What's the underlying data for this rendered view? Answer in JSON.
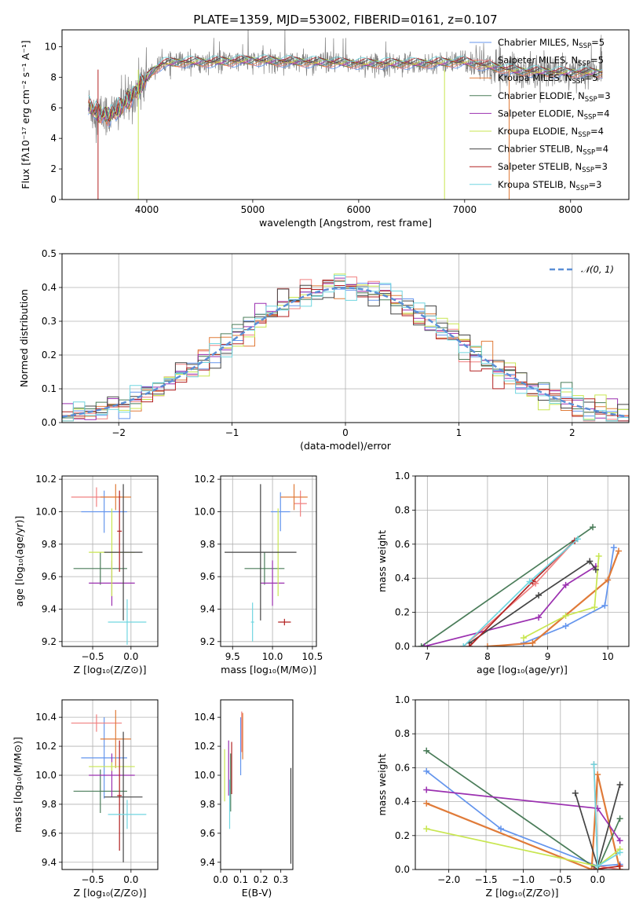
{
  "colors": {
    "chabrier_miles": "#6495ed",
    "salpeter_miles": "#f08080",
    "kroupa_miles": "#e07b39",
    "chabrier_elodie": "#4a7c59",
    "salpeter_elodie": "#9b30b0",
    "kroupa_elodie": "#c8e650",
    "chabrier_stelib": "#444444",
    "salpeter_stelib": "#b22222",
    "kroupa_stelib": "#70d6e0",
    "normal": "#5b8fd6",
    "spectrum": "#808080"
  },
  "chart_data": [
    {
      "id": "spectrum",
      "type": "line",
      "title": "PLATE=1359, MJD=53002, FIBERID=0161, z=0.107",
      "xlabel": "wavelength [Angstrom, rest frame]",
      "ylabel": "Flux [fλ10⁻¹⁷ erg cm⁻² s⁻¹ A⁻¹]",
      "xlim": [
        3200,
        8550
      ],
      "ylim": [
        0,
        11.1
      ],
      "xticks": [
        4000,
        5000,
        6000,
        7000,
        8000
      ],
      "yticks": [
        0,
        2,
        4,
        6,
        8,
        10
      ],
      "spectrum_anchors": {
        "x": [
          3450,
          3550,
          3650,
          3750,
          3850,
          3950,
          4050,
          4150,
          4350,
          4600,
          5000,
          5500,
          6000,
          6500,
          7000,
          7500,
          8000,
          8300
        ],
        "y": [
          6.1,
          5.6,
          5.5,
          6.0,
          6.7,
          7.5,
          8.4,
          8.9,
          9.0,
          9.0,
          9.1,
          9.0,
          8.9,
          8.9,
          9.0,
          8.4,
          8.3,
          8.3
        ]
      },
      "legend": [
        {
          "label": "Chabrier MILES, N",
          "sub": "SSP",
          "tail": "=5",
          "color_key": "chabrier_miles"
        },
        {
          "label": "Salpeter MILES, N",
          "sub": "SSP",
          "tail": "=5",
          "color_key": "salpeter_miles"
        },
        {
          "label": "Kroupa MILES, N",
          "sub": "SSP",
          "tail": "=5",
          "color_key": "kroupa_miles"
        },
        {
          "label": "Chabrier ELODIE, N",
          "sub": "SSP",
          "tail": "=3",
          "color_key": "chabrier_elodie"
        },
        {
          "label": "Salpeter ELODIE, N",
          "sub": "SSP",
          "tail": "=4",
          "color_key": "salpeter_elodie"
        },
        {
          "label": "Kroupa ELODIE, N",
          "sub": "SSP",
          "tail": "=4",
          "color_key": "kroupa_elodie"
        },
        {
          "label": "Chabrier STELIB, N",
          "sub": "SSP",
          "tail": "=4",
          "color_key": "chabrier_stelib"
        },
        {
          "label": "Salpeter STELIB, N",
          "sub": "SSP",
          "tail": "=3",
          "color_key": "salpeter_stelib"
        },
        {
          "label": "Kroupa STELIB, N",
          "sub": "SSP",
          "tail": "=3",
          "color_key": "kroupa_stelib"
        }
      ],
      "legend_placement": "upper-right"
    },
    {
      "id": "residuals",
      "type": "histogram",
      "xlabel": "(data-model)/error",
      "ylabel": "Normed distribution",
      "xlim": [
        -2.5,
        2.5
      ],
      "ylim": [
        0,
        0.5
      ],
      "xticks": [
        -2,
        -1,
        0,
        1,
        2
      ],
      "yticks": [
        0.0,
        0.1,
        0.2,
        0.3,
        0.4,
        0.5
      ],
      "grid": true,
      "legend": [
        {
          "label": "𝒩(0, 1)",
          "color_key": "normal",
          "style": "dashed"
        }
      ],
      "legend_placement": "upper-right"
    },
    {
      "id": "age_vs_z",
      "type": "errorbar",
      "xlabel": "Z [log₁₀(Z/Z⊙)]",
      "ylabel": "age [log₁₀(age/yr)]",
      "xlim": [
        -0.9,
        0.35
      ],
      "ylim": [
        9.17,
        10.22
      ],
      "xticks": [
        -0.5,
        0.0
      ],
      "yticks": [
        9.2,
        9.4,
        9.6,
        9.8,
        10.0,
        10.2
      ],
      "grid": true,
      "points": [
        {
          "color_key": "chabrier_miles",
          "x": -0.35,
          "xerr": 0.3,
          "y": 10.0,
          "yerr": 0.13
        },
        {
          "color_key": "salpeter_miles",
          "x": -0.45,
          "xerr": 0.33,
          "y": 10.09,
          "yerr": 0.06
        },
        {
          "color_key": "kroupa_miles",
          "x": -0.2,
          "xerr": 0.2,
          "y": 10.09,
          "yerr": 0.08
        },
        {
          "color_key": "chabrier_elodie",
          "x": -0.4,
          "xerr": 0.35,
          "y": 9.65,
          "yerr": 0.1
        },
        {
          "color_key": "salpeter_elodie",
          "x": -0.25,
          "xerr": 0.3,
          "y": 9.56,
          "yerr": 0.14
        },
        {
          "color_key": "kroupa_elodie",
          "x": -0.25,
          "xerr": 0.3,
          "y": 9.75,
          "yerr": 0.27
        },
        {
          "color_key": "chabrier_stelib",
          "x": -0.1,
          "xerr": 0.25,
          "y": 9.75,
          "yerr": 0.42
        },
        {
          "color_key": "salpeter_stelib",
          "x": -0.15,
          "xerr": 0.03,
          "y": 9.88,
          "yerr": 0.25
        },
        {
          "color_key": "kroupa_stelib",
          "x": -0.05,
          "xerr": 0.25,
          "y": 9.32,
          "yerr": 0.14
        }
      ]
    },
    {
      "id": "age_vs_mass",
      "type": "errorbar",
      "xlabel": "mass [log₁₀(M/M⊙)]",
      "ylabel": "",
      "xlim": [
        9.35,
        10.55
      ],
      "ylim": [
        9.17,
        10.22
      ],
      "xticks": [
        9.5,
        10.0,
        10.5
      ],
      "yticks": [
        9.2,
        9.4,
        9.6,
        9.8,
        10.0,
        10.2
      ],
      "grid": true,
      "points": [
        {
          "color_key": "chabrier_miles",
          "x": 10.1,
          "xerr": 0.12,
          "y": 10.0,
          "yerr": 0.12
        },
        {
          "color_key": "salpeter_miles",
          "x": 10.35,
          "xerr": 0.08,
          "y": 10.05,
          "yerr": 0.08
        },
        {
          "color_key": "kroupa_miles",
          "x": 10.27,
          "xerr": 0.17,
          "y": 10.09,
          "yerr": 0.08
        },
        {
          "color_key": "chabrier_elodie",
          "x": 9.9,
          "xerr": 0.25,
          "y": 9.65,
          "yerr": 0.1
        },
        {
          "color_key": "salpeter_elodie",
          "x": 10.0,
          "xerr": 0.15,
          "y": 9.56,
          "yerr": 0.14
        },
        {
          "color_key": "kroupa_elodie",
          "x": 10.07,
          "xerr": 0.02,
          "y": 9.75,
          "yerr": 0.27
        },
        {
          "color_key": "chabrier_stelib",
          "x": 9.85,
          "xerr": 0.45,
          "y": 9.75,
          "yerr": 0.42
        },
        {
          "color_key": "salpeter_stelib",
          "x": 10.15,
          "xerr": 0.08,
          "y": 9.32,
          "yerr": 0.02
        },
        {
          "color_key": "kroupa_stelib",
          "x": 9.75,
          "xerr": 0.02,
          "y": 9.32,
          "yerr": 0.12
        }
      ]
    },
    {
      "id": "mass_weight_vs_age",
      "type": "line",
      "xlabel": "age [log₁₀(age/yr)]",
      "ylabel": "mass weight",
      "xlim": [
        6.8,
        10.35
      ],
      "ylim": [
        0,
        1.0
      ],
      "xticks": [
        7,
        8,
        9,
        10
      ],
      "yticks": [
        0.0,
        0.2,
        0.4,
        0.6,
        0.8,
        1.0
      ],
      "grid": true,
      "series": [
        {
          "color_key": "chabrier_miles",
          "x": [
            8.6,
            9.3,
            9.95,
            10.1
          ],
          "y": [
            0.02,
            0.12,
            0.24,
            0.58
          ]
        },
        {
          "color_key": "salpeter_miles",
          "x": [
            7.6,
            8.8,
            9.45
          ],
          "y": [
            0.0,
            0.37,
            0.62
          ]
        },
        {
          "color_key": "kroupa_miles",
          "x": [
            8.0,
            8.75,
            10.0,
            10.18
          ],
          "y": [
            0.0,
            0.02,
            0.39,
            0.56
          ]
        },
        {
          "color_key": "chabrier_elodie",
          "x": [
            6.9,
            9.75
          ],
          "y": [
            0.0,
            0.7
          ]
        },
        {
          "color_key": "salpeter_elodie",
          "x": [
            6.95,
            8.85,
            9.3,
            9.8
          ],
          "y": [
            0.0,
            0.17,
            0.36,
            0.47
          ]
        },
        {
          "color_key": "kroupa_elodie",
          "x": [
            8.6,
            9.3,
            9.78,
            9.85
          ],
          "y": [
            0.05,
            0.18,
            0.23,
            0.53
          ]
        },
        {
          "color_key": "chabrier_stelib",
          "x": [
            7.7,
            8.85,
            9.7,
            9.8
          ],
          "y": [
            0.02,
            0.3,
            0.5,
            0.45
          ]
        },
        {
          "color_key": "salpeter_stelib",
          "x": [
            7.7,
            8.75,
            9.45
          ],
          "y": [
            0.0,
            0.38,
            0.62
          ]
        },
        {
          "color_key": "kroupa_stelib",
          "x": [
            7.6,
            8.7,
            9.5
          ],
          "y": [
            0.0,
            0.38,
            0.63
          ]
        }
      ]
    },
    {
      "id": "mass_vs_z",
      "type": "errorbar",
      "xlabel": "Z [log₁₀(Z/Z⊙)]",
      "ylabel": "mass [log₁₀(M/M⊙)]",
      "xlim": [
        -0.9,
        0.35
      ],
      "ylim": [
        9.35,
        10.52
      ],
      "xticks": [
        -0.5,
        0.0
      ],
      "yticks": [
        9.4,
        9.6,
        9.8,
        10.0,
        10.2,
        10.4
      ],
      "grid": true,
      "points": [
        {
          "color_key": "chabrier_miles",
          "x": -0.35,
          "xerr": 0.3,
          "y": 10.12,
          "yerr": 0.28
        },
        {
          "color_key": "salpeter_miles",
          "x": -0.45,
          "xerr": 0.33,
          "y": 10.36,
          "yerr": 0.06
        },
        {
          "color_key": "kroupa_miles",
          "x": -0.2,
          "xerr": 0.2,
          "y": 10.25,
          "yerr": 0.2
        },
        {
          "color_key": "chabrier_elodie",
          "x": -0.4,
          "xerr": 0.35,
          "y": 9.89,
          "yerr": 0.15
        },
        {
          "color_key": "salpeter_elodie",
          "x": -0.25,
          "xerr": 0.3,
          "y": 10.0,
          "yerr": 0.15
        },
        {
          "color_key": "kroupa_elodie",
          "x": -0.25,
          "xerr": 0.3,
          "y": 10.06,
          "yerr": 0.03
        },
        {
          "color_key": "chabrier_stelib",
          "x": -0.1,
          "xerr": 0.25,
          "y": 9.85,
          "yerr": 0.45
        },
        {
          "color_key": "salpeter_stelib",
          "x": -0.15,
          "xerr": 0.03,
          "y": 9.86,
          "yerr": 0.38
        },
        {
          "color_key": "kroupa_stelib",
          "x": -0.05,
          "xerr": 0.25,
          "y": 9.73,
          "yerr": 0.1
        }
      ]
    },
    {
      "id": "mass_vs_ebv",
      "type": "errorbar",
      "xlabel": "E(B-V)",
      "ylabel": "",
      "xlim": [
        0.0,
        0.36
      ],
      "ylim": [
        9.35,
        10.52
      ],
      "xticks": [
        0.0,
        0.1,
        0.2,
        0.3
      ],
      "yticks": [
        9.4,
        9.6,
        9.8,
        10.0,
        10.2,
        10.4
      ],
      "grid": false,
      "points": [
        {
          "color_key": "chabrier_miles",
          "x": 0.1,
          "xerr": 0.0,
          "y": 10.2,
          "yerr": 0.2
        },
        {
          "color_key": "salpeter_miles",
          "x": 0.105,
          "xerr": 0.0,
          "y": 10.3,
          "yerr": 0.14
        },
        {
          "color_key": "kroupa_miles",
          "x": 0.11,
          "xerr": 0.0,
          "y": 10.27,
          "yerr": 0.16
        },
        {
          "color_key": "chabrier_elodie",
          "x": 0.05,
          "xerr": 0.0,
          "y": 9.95,
          "yerr": 0.2
        },
        {
          "color_key": "salpeter_elodie",
          "x": 0.04,
          "xerr": 0.0,
          "y": 10.05,
          "yerr": 0.19
        },
        {
          "color_key": "kroupa_elodie",
          "x": 0.02,
          "xerr": 0.0,
          "y": 10.0,
          "yerr": 0.18
        },
        {
          "color_key": "chabrier_stelib",
          "x": 0.35,
          "xerr": 0.0,
          "y": 9.72,
          "yerr": 0.33
        },
        {
          "color_key": "salpeter_stelib",
          "x": 0.055,
          "xerr": 0.0,
          "y": 10.05,
          "yerr": 0.18
        },
        {
          "color_key": "kroupa_stelib",
          "x": 0.045,
          "xerr": 0.0,
          "y": 9.8,
          "yerr": 0.17
        }
      ]
    },
    {
      "id": "mass_weight_vs_z",
      "type": "line",
      "xlabel": "Z [log₁₀(Z/Z⊙)]",
      "ylabel": "mass weight",
      "xlim": [
        -2.45,
        0.42
      ],
      "ylim": [
        0,
        1.0
      ],
      "xticks": [
        -2.0,
        -1.5,
        -1.0,
        -0.5,
        0.0
      ],
      "yticks": [
        0.0,
        0.2,
        0.4,
        0.6,
        0.8,
        1.0
      ],
      "grid": true,
      "series": [
        {
          "color_key": "chabrier_miles",
          "x": [
            -2.3,
            -1.3,
            0.0,
            0.3
          ],
          "y": [
            0.58,
            0.24,
            0.02,
            0.03
          ]
        },
        {
          "color_key": "salpeter_miles",
          "x": [
            -0.05,
            0.0,
            0.3
          ],
          "y": [
            0.62,
            0.02,
            0.0
          ]
        },
        {
          "color_key": "kroupa_miles",
          "x": [
            -2.3,
            -0.08,
            0.0,
            0.3
          ],
          "y": [
            0.39,
            0.0,
            0.56,
            0.0
          ]
        },
        {
          "color_key": "chabrier_elodie",
          "x": [
            -2.3,
            0.0,
            0.3
          ],
          "y": [
            0.7,
            0.0,
            0.3
          ]
        },
        {
          "color_key": "salpeter_elodie",
          "x": [
            -2.3,
            0.0,
            0.3
          ],
          "y": [
            0.47,
            0.36,
            0.17
          ]
        },
        {
          "color_key": "kroupa_elodie",
          "x": [
            -2.3,
            0.0,
            0.3
          ],
          "y": [
            0.24,
            0.02,
            0.12
          ]
        },
        {
          "color_key": "chabrier_stelib",
          "x": [
            -0.3,
            0.0,
            0.3
          ],
          "y": [
            0.45,
            0.02,
            0.5
          ]
        },
        {
          "color_key": "salpeter_stelib",
          "x": [
            -0.05,
            0.3
          ],
          "y": [
            0.0,
            0.02
          ]
        },
        {
          "color_key": "kroupa_stelib",
          "x": [
            -0.05,
            0.0,
            0.3
          ],
          "y": [
            0.62,
            0.02,
            0.1
          ]
        }
      ]
    }
  ]
}
